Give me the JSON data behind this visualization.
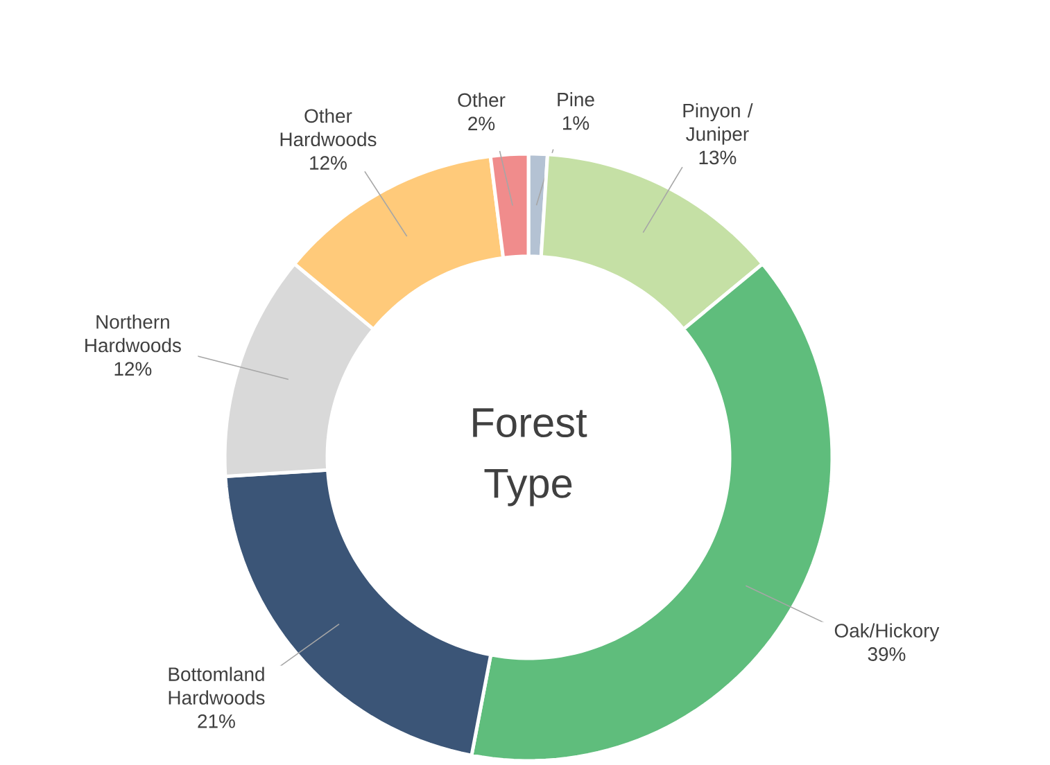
{
  "chart_data": {
    "type": "donut",
    "title": "Forest Type",
    "categories": [
      "Pine",
      "Pinyon / Juniper",
      "Oak/Hickory",
      "Bottomland Hardwoods",
      "Northern Hardwoods",
      "Other Hardwoods",
      "Other"
    ],
    "values": [
      1,
      13,
      39,
      21,
      12,
      12,
      2
    ],
    "value_labels": [
      "1%",
      "13%",
      "39%",
      "21%",
      "12%",
      "12%",
      "2%"
    ],
    "colors": [
      "#b4c2d3",
      "#c5e0a5",
      "#5fbd7c",
      "#3b5577",
      "#d9d9d9",
      "#ffca7a",
      "#f08c8c"
    ]
  }
}
